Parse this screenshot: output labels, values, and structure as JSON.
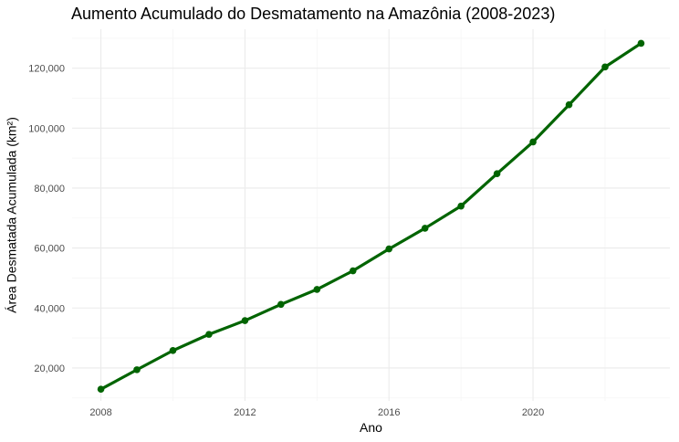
{
  "chart_data": {
    "type": "line",
    "title": "Aumento Acumulado do Desmatamento na Amazônia (2008-2023)",
    "xlabel": "Ano",
    "ylabel": "Área Desmatada Acumulada (km²)",
    "x_ticks": [
      "2008",
      "2012",
      "2016",
      "2020"
    ],
    "y_ticks": [
      "20,000",
      "40,000",
      "60,000",
      "80,000",
      "100,000",
      "120,000"
    ],
    "xlim": [
      2007.2,
      2023.8
    ],
    "ylim": [
      9000,
      133000
    ],
    "grid": true,
    "line_color": "#006400",
    "series": [
      {
        "x": [
          2008,
          2009,
          2010,
          2011,
          2012,
          2013,
          2014,
          2015,
          2016,
          2017,
          2018,
          2019,
          2020,
          2021,
          2022,
          2023
        ],
        "values": [
          12900,
          19400,
          25800,
          31200,
          35800,
          41200,
          46200,
          52400,
          59700,
          66600,
          74000,
          84800,
          95400,
          107800,
          120400,
          128300
        ]
      }
    ]
  }
}
